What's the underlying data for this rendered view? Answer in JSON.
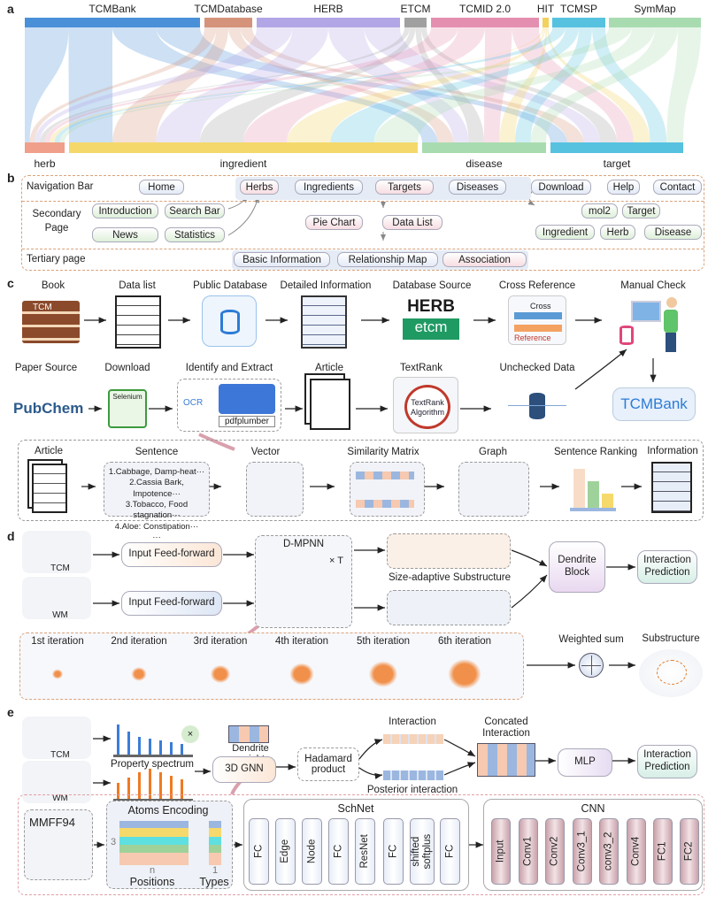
{
  "panels": {
    "a": "a",
    "b": "b",
    "c": "c",
    "d": "d",
    "e": "e"
  },
  "sankey": {
    "sources": [
      {
        "name": "TCMBank",
        "color": "#4a90d9"
      },
      {
        "name": "TCMDatabase",
        "color": "#d4937a"
      },
      {
        "name": "HERB",
        "color": "#b3a6e6"
      },
      {
        "name": "ETCM",
        "color": "#a0a0a0"
      },
      {
        "name": "TCMID 2.0",
        "color": "#e58fb0"
      },
      {
        "name": "HIT",
        "color": "#f2d15c"
      },
      {
        "name": "TCMSP",
        "color": "#56c2e0"
      },
      {
        "name": "SymMap",
        "color": "#a8dcb0"
      }
    ],
    "targets": [
      {
        "name": "herb",
        "color": "#f0a08a"
      },
      {
        "name": "ingredient",
        "color": "#f5d86b"
      },
      {
        "name": "disease",
        "color": "#a8dcb0"
      },
      {
        "name": "target",
        "color": "#56c2e0"
      }
    ]
  },
  "b": {
    "row_labels": [
      "Navigation Bar",
      "Secondary Page",
      "Tertiary page"
    ],
    "nav": [
      "Home",
      "Herbs",
      "Ingredients",
      "Targets",
      "Diseases",
      "Download",
      "Help",
      "Contact"
    ],
    "secondary": [
      "Introduction",
      "Search Bar",
      "News",
      "Statistics",
      "Pie Chart",
      "Data List",
      "mol2",
      "Target",
      "Ingredient",
      "Herb",
      "Disease"
    ],
    "tertiary": [
      "Basic Information",
      "Relationship Map",
      "Association"
    ]
  },
  "c": {
    "row1": [
      "Book",
      "Data list",
      "Public Database",
      "Detailed Information",
      "Database Source",
      "Cross Reference",
      "Manual Check"
    ],
    "row2": [
      "Paper Source",
      "Download",
      "Identify and Extract",
      "Article",
      "TextRank",
      "Unchecked Data"
    ],
    "book_text": "TCM",
    "herb_logo": "HERB",
    "etcm_logo": "etcm",
    "cross": "Cross",
    "reference": "Reference",
    "pubchem": "PubChem",
    "selenium": "Selenium",
    "ocr": "OCR",
    "pdfplumber": "pdfplumber",
    "textrank_algo": "TextRank Algorithm",
    "tcmbank": "TCMBank",
    "pipeline": [
      "Article",
      "Sentence",
      "Vector",
      "Similarity Matrix",
      "Graph",
      "Sentence Ranking",
      "Information"
    ],
    "sentences": [
      "1.Cabbage, Damp-heat···",
      "2.Cassia Bark, Impotence···",
      "3.Tobacco, Food stagnation···",
      "4.Aloe: Constipation···",
      "···"
    ]
  },
  "d": {
    "tcm": "TCM",
    "wm": "WM",
    "ff1": "Input Feed-forward",
    "ff2": "Input Feed-forward",
    "dmpnn": "D-MPNN",
    "times_t": "× T",
    "substructure": "Size-adaptive Substructure",
    "dendrite": "Dendrite Block",
    "prediction": "Interaction Prediction",
    "iterations": [
      "1st iteration",
      "2nd iteration",
      "3rd iteration",
      "4th iteration",
      "5th iteration",
      "6th iteration"
    ],
    "weighted": "Weighted sum",
    "sub_label": "Substructure"
  },
  "e": {
    "tcm": "TCM",
    "wm": "WM",
    "spectrum": "Property spectrum",
    "times": "×",
    "dendrite_weight": "Dendrite weight",
    "gnn": "3D GNN",
    "hadamard": "Hadamard product",
    "interaction": "Interaction",
    "posterior": "Posterior interaction",
    "concated": "Concated Interaction",
    "mlp": "MLP",
    "prediction": "Interaction Prediction",
    "mmff": "MMFF94",
    "atoms": "Atoms Encoding",
    "three": "3",
    "n": "n",
    "one": "1",
    "positions": "Positions",
    "types": "Types",
    "schnet": "SchNet",
    "schnet_layers": [
      "FC",
      "Edge",
      "Node",
      "FC",
      "ResNet",
      "FC",
      "shifted softplus",
      "FC"
    ],
    "cnn": "CNN",
    "cnn_layers": [
      "Input",
      "Conv1",
      "Conv2",
      "Conv3_1",
      "conv3_2",
      "Conv4",
      "FC1",
      "FC2"
    ]
  }
}
